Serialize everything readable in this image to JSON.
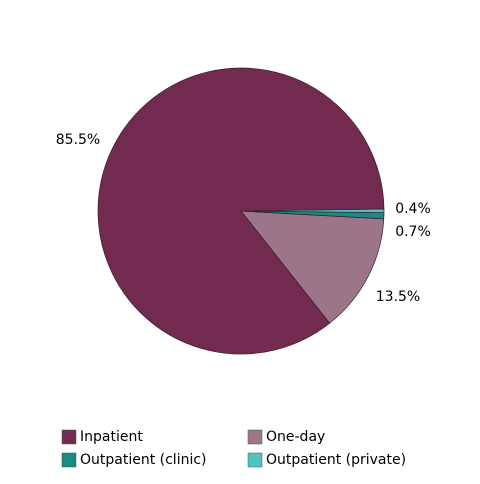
{
  "chart_data": {
    "type": "pie",
    "categories": [
      "Inpatient",
      "One-day",
      "Outpatient (clinic)",
      "Outpatient (private)"
    ],
    "values": [
      85.5,
      13.5,
      0.7,
      0.4
    ],
    "value_labels": [
      "85.5%",
      "13.5%",
      "0.7%",
      "0.4%"
    ],
    "colors": [
      "#722b4f",
      "#9c7589",
      "#1a8a84",
      "#4fc3c0"
    ]
  }
}
